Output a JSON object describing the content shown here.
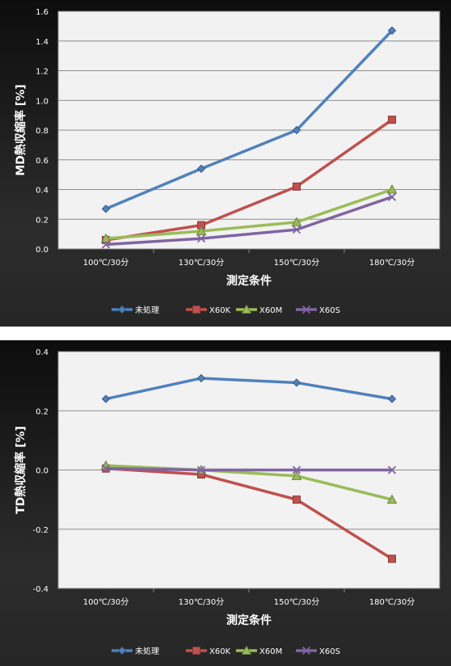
{
  "chart_data": [
    {
      "type": "line",
      "xlabel": "測定条件",
      "ylabel": "MD熱収縮率 [%]",
      "categories": [
        "100℃/30分",
        "130℃/30分",
        "150℃/30分",
        "180℃/30分"
      ],
      "ylim": [
        0,
        1.6
      ],
      "yticks": [
        "0.0",
        "0.2",
        "0.4",
        "0.6",
        "0.8",
        "1.0",
        "1.2",
        "1.4",
        "1.6"
      ],
      "grid": true,
      "legend_position": "bottom",
      "series": [
        {
          "name": "未処理",
          "color": "#4f81bd",
          "marker": "diamond",
          "values": [
            0.27,
            0.54,
            0.8,
            1.47
          ]
        },
        {
          "name": "X60K",
          "color": "#c0504d",
          "marker": "square",
          "values": [
            0.06,
            0.16,
            0.42,
            0.87
          ]
        },
        {
          "name": "X60M",
          "color": "#9bbb59",
          "marker": "triangle",
          "values": [
            0.07,
            0.12,
            0.18,
            0.4
          ]
        },
        {
          "name": "X60S",
          "color": "#8064a2",
          "marker": "x",
          "values": [
            0.03,
            0.07,
            0.13,
            0.35
          ]
        }
      ]
    },
    {
      "type": "line",
      "xlabel": "測定条件",
      "ylabel": "TD熱収縮率 [%]",
      "categories": [
        "100℃/30分",
        "130℃/30分",
        "150℃/30分",
        "180℃/30分"
      ],
      "ylim": [
        -0.4,
        0.4
      ],
      "yticks": [
        "-0.4",
        "-0.2",
        "0.0",
        "0.2",
        "0.4"
      ],
      "grid": true,
      "legend_position": "bottom",
      "series": [
        {
          "name": "未処理",
          "color": "#4f81bd",
          "marker": "diamond",
          "values": [
            0.24,
            0.31,
            0.295,
            0.24
          ]
        },
        {
          "name": "X60K",
          "color": "#c0504d",
          "marker": "square",
          "values": [
            0.005,
            -0.015,
            -0.1,
            -0.3
          ]
        },
        {
          "name": "X60M",
          "color": "#9bbb59",
          "marker": "triangle",
          "values": [
            0.015,
            0.0,
            -0.02,
            -0.1
          ]
        },
        {
          "name": "X60S",
          "color": "#8064a2",
          "marker": "x",
          "values": [
            0.005,
            0.0,
            0.0,
            0.0
          ]
        }
      ]
    }
  ]
}
